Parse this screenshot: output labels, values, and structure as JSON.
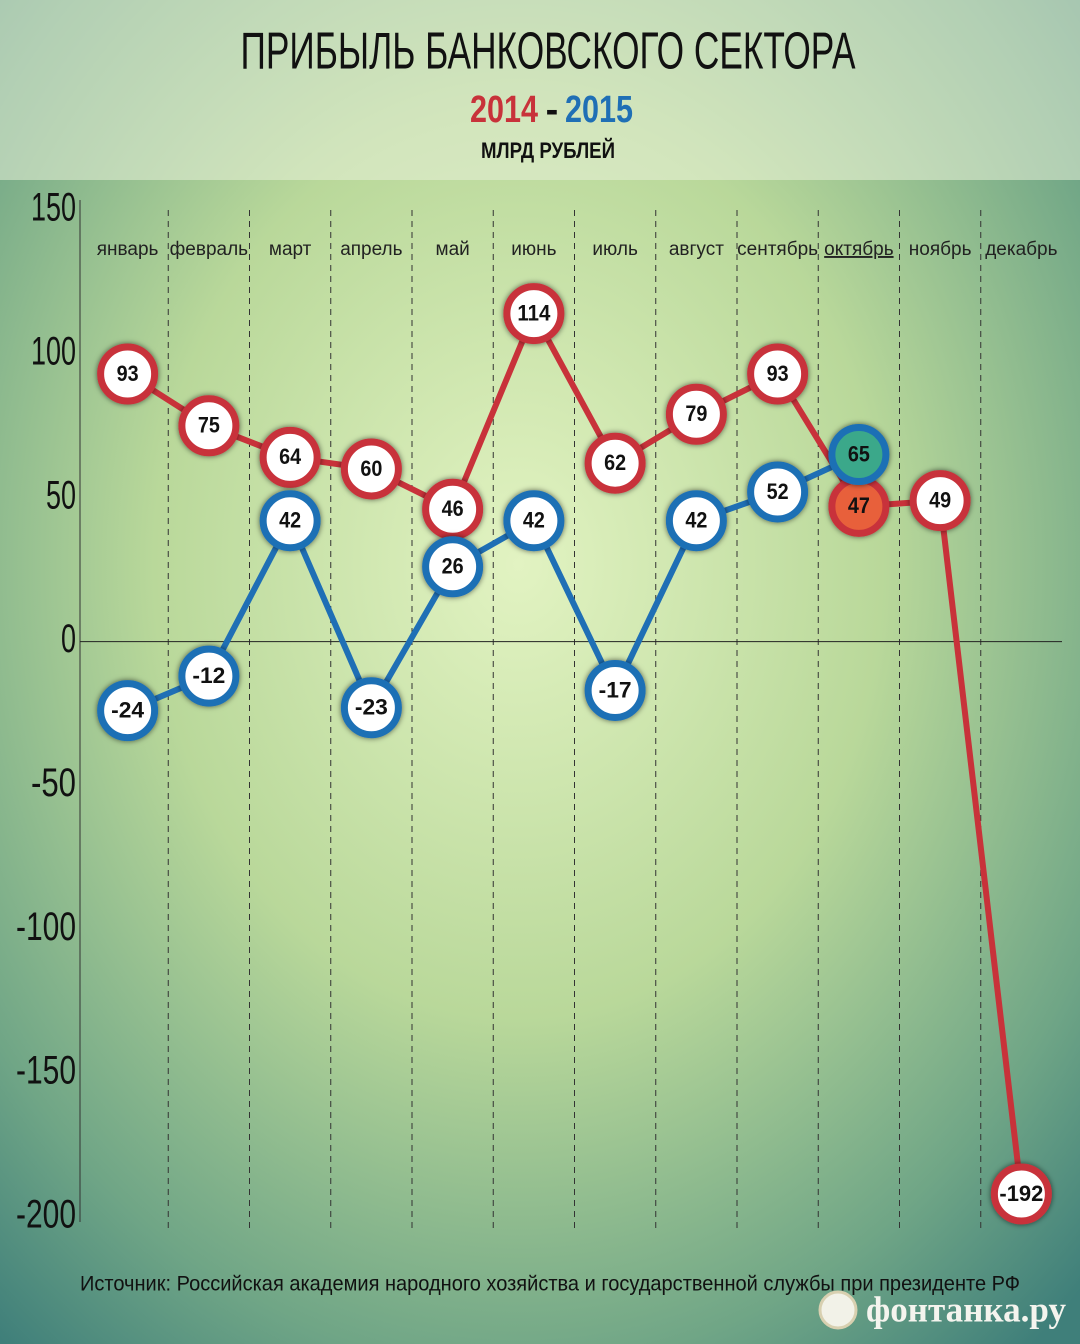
{
  "chart_data": {
    "type": "line",
    "title": "ПРИБЫЛЬ БАНКОВСКОГО СЕКТОРА",
    "subtitle_separator": "-",
    "unit_label": "МЛРД РУБЛЕЙ",
    "categories": [
      "январь",
      "февраль",
      "март",
      "апрель",
      "май",
      "июнь",
      "июль",
      "август",
      "сентябрь",
      "октябрь",
      "ноябрь",
      "декабрь"
    ],
    "series": [
      {
        "name": "2014",
        "color": "#c8323a",
        "values": [
          93,
          75,
          64,
          60,
          46,
          114,
          62,
          79,
          93,
          47,
          49,
          -192
        ]
      },
      {
        "name": "2015",
        "color": "#1f6fb5",
        "values": [
          -24,
          -12,
          42,
          -23,
          26,
          42,
          -17,
          42,
          52,
          65,
          null,
          null
        ]
      }
    ],
    "ylim": [
      -200,
      150
    ],
    "yticks": [
      150,
      100,
      50,
      0,
      -50,
      -100,
      -150,
      -200
    ],
    "grid": false,
    "source": "Источник: Российская академия народного хозяйства и государственной службы при президенте РФ",
    "logo": "фонтанка.ру"
  }
}
